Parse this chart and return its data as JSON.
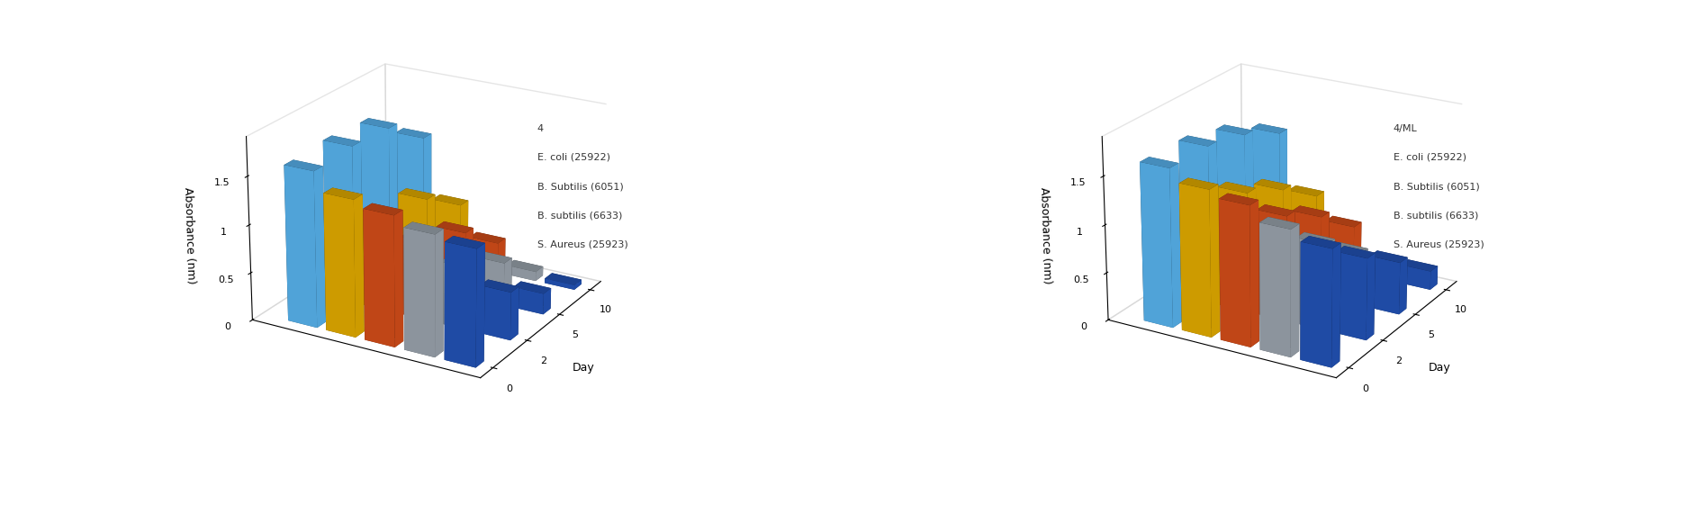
{
  "chart1": {
    "xlabel": "Day",
    "ylabel": "Absorbance (nm)",
    "days": [
      0,
      2,
      5,
      10
    ],
    "series_order": [
      "S. Aureus (25923)",
      "B. subtilis (6633)",
      "B. Subtilis (6051)",
      "E. coli (25922)",
      "4"
    ],
    "series": {
      "S. Aureus (25923)": [
        1.2,
        0.5,
        0.22,
        0.05
      ],
      "B. subtilis (6633)": [
        1.25,
        0.65,
        0.45,
        0.1
      ],
      "B. Subtilis (6051)": [
        1.35,
        0.82,
        0.68,
        0.32
      ],
      "E. coli (25922)": [
        1.42,
        1.0,
        0.95,
        0.65
      ],
      "4": [
        1.62,
        1.65,
        1.62,
        1.3
      ]
    },
    "legend_label": "4",
    "inline_labels": [
      "4",
      "E. coli (25922)",
      "B. Subtilis (6051)",
      "B. subtilis (6633)",
      "S. Aureus (25923)"
    ],
    "colors": {
      "S. Aureus (25923)": "#2355BB",
      "B. subtilis (6633)": "#9EA8B2",
      "B. Subtilis (6051)": "#D94F1A",
      "E. coli (25922)": "#E8B000",
      "4": "#5BB8F5"
    }
  },
  "chart2": {
    "xlabel": "Day",
    "ylabel": "Absorbance (nm)",
    "days": [
      0,
      2,
      5,
      10
    ],
    "series_order": [
      "S. Aureus (25923)",
      "B. subtilis (6633)",
      "B. Subtilis (6051)",
      "E. coli (25922)",
      "4/ML"
    ],
    "series": {
      "S. Aureus (25923)": [
        1.2,
        0.85,
        0.55,
        0.2
      ],
      "B. subtilis (6633)": [
        1.3,
        0.9,
        0.55,
        0.15
      ],
      "B. Subtilis (6051)": [
        1.45,
        1.1,
        0.85,
        0.5
      ],
      "E. coli (25922)": [
        1.52,
        1.25,
        1.05,
        0.75
      ],
      "4/ML": [
        1.65,
        1.65,
        1.55,
        1.35
      ]
    },
    "legend_label": "4/ML",
    "inline_labels": [
      "4/ML",
      "E. coli (25922)",
      "B. Subtilis (6051)",
      "B. subtilis (6633)",
      "S. Aureus (25923)"
    ],
    "colors": {
      "S. Aureus (25923)": "#2355BB",
      "B. subtilis (6633)": "#9EA8B2",
      "B. Subtilis (6051)": "#D94F1A",
      "E. coli (25922)": "#E8B000",
      "4/ML": "#5BB8F5"
    }
  },
  "bar_width": 0.35,
  "bar_depth": 0.55,
  "ylim": [
    0,
    1.9
  ],
  "yticks": [
    0,
    0.5,
    1.0,
    1.5
  ],
  "ytick_labels": [
    "0",
    "0.5",
    "1",
    "1.5"
  ],
  "background_color": "#FFFFFF",
  "elev": 22,
  "azim": 210,
  "legend_fontsize": 8,
  "axis_label_fontsize": 9,
  "tick_fontsize": 8
}
